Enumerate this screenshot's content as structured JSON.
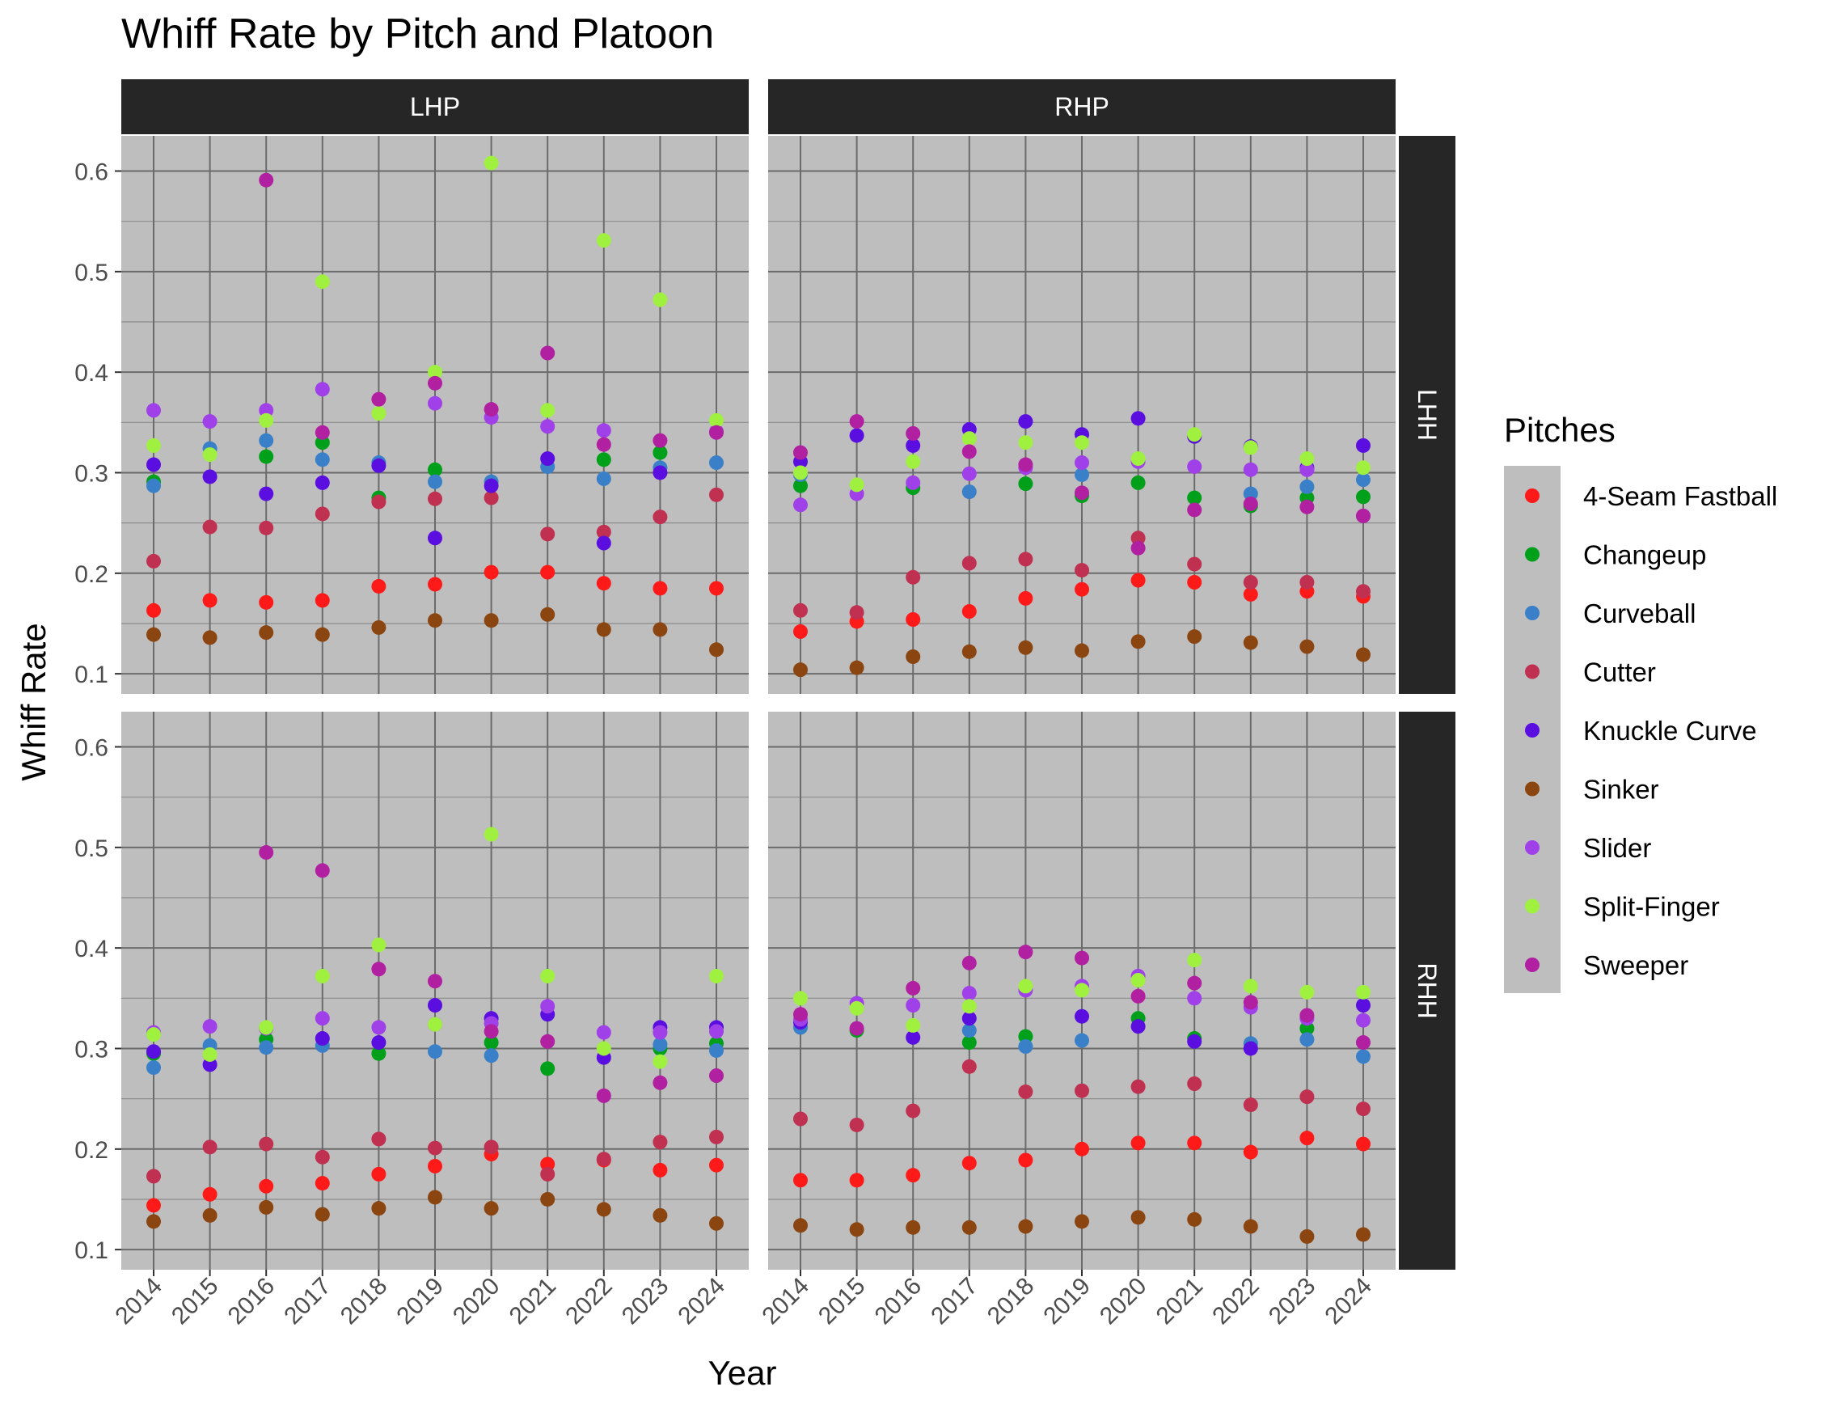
{
  "title": "Whiff Rate by Pitch and Platoon",
  "xlabel": "Year",
  "ylabel": "Whiff Rate",
  "legend_title": "Pitches",
  "colors": {
    "panel_bg": "#bebebe",
    "strip_bg": "#262626",
    "grid_major": "#6b6b6b",
    "grid_minor": "#8c8c8c",
    "legend_bg": "#bebebe"
  },
  "chart_data": {
    "type": "scatter",
    "facet_columns": [
      "LHP",
      "RHP"
    ],
    "facet_rows": [
      "LHH",
      "RHH"
    ],
    "x": [
      "2014",
      "2015",
      "2016",
      "2017",
      "2018",
      "2019",
      "2020",
      "2021",
      "2022",
      "2023",
      "2024"
    ],
    "ylim": [
      0.08,
      0.635
    ],
    "yticks": [
      "0.1",
      "0.2",
      "0.3",
      "0.4",
      "0.5",
      "0.6"
    ],
    "grid": true,
    "legend_position": "right",
    "series": [
      {
        "name": "4-Seam Fastball",
        "color": "#ff1a1a"
      },
      {
        "name": "Changeup",
        "color": "#00a01a"
      },
      {
        "name": "Curveball",
        "color": "#3a80c8"
      },
      {
        "name": "Cutter",
        "color": "#c03050"
      },
      {
        "name": "Knuckle Curve",
        "color": "#5a0ee0"
      },
      {
        "name": "Sinker",
        "color": "#8b4510"
      },
      {
        "name": "Slider",
        "color": "#a040e8"
      },
      {
        "name": "Split-Finger",
        "color": "#a0f040"
      },
      {
        "name": "Sweeper",
        "color": "#b020a0"
      }
    ],
    "panels": [
      {
        "column": "LHP",
        "row": "LHH",
        "values": {
          "4-Seam Fastball": [
            0.163,
            0.173,
            0.171,
            0.173,
            0.187,
            0.189,
            0.201,
            0.201,
            0.19,
            0.185,
            0.185
          ],
          "Changeup": [
            0.291,
            null,
            0.316,
            0.33,
            0.275,
            0.303,
            null,
            null,
            0.313,
            0.32,
            null
          ],
          "Curveball": [
            0.287,
            0.324,
            0.332,
            0.313,
            0.31,
            0.291,
            0.291,
            0.306,
            0.294,
            0.305,
            0.31
          ],
          "Cutter": [
            0.212,
            0.246,
            0.245,
            0.259,
            0.271,
            0.274,
            0.275,
            0.239,
            0.241,
            0.256,
            0.278
          ],
          "Knuckle Curve": [
            0.308,
            0.296,
            0.279,
            0.29,
            0.307,
            0.235,
            0.287,
            0.314,
            0.23,
            0.3,
            null
          ],
          "Sinker": [
            0.139,
            0.136,
            0.141,
            0.139,
            0.146,
            0.153,
            0.153,
            0.159,
            0.144,
            0.144,
            0.124
          ],
          "Slider": [
            0.362,
            0.351,
            0.362,
            0.383,
            null,
            0.369,
            0.355,
            0.346,
            0.342,
            null,
            0.341
          ],
          "Split-Finger": [
            0.327,
            0.318,
            0.352,
            0.49,
            0.359,
            0.4,
            0.608,
            0.362,
            0.531,
            0.472,
            0.352
          ],
          "Sweeper": [
            null,
            null,
            0.591,
            0.34,
            0.373,
            0.389,
            0.363,
            0.419,
            0.328,
            0.332,
            0.34
          ]
        }
      },
      {
        "column": "RHP",
        "row": "LHH",
        "values": {
          "4-Seam Fastball": [
            0.142,
            0.152,
            0.154,
            0.162,
            0.175,
            0.184,
            0.193,
            0.191,
            0.179,
            0.182,
            0.177
          ],
          "Changeup": [
            0.287,
            null,
            0.285,
            null,
            0.289,
            0.277,
            0.29,
            0.275,
            0.267,
            0.275,
            0.276
          ],
          "Curveball": [
            0.298,
            null,
            null,
            0.281,
            null,
            0.298,
            null,
            null,
            0.279,
            0.286,
            0.293
          ],
          "Cutter": [
            0.163,
            0.161,
            0.196,
            0.21,
            0.214,
            0.203,
            0.235,
            0.209,
            0.191,
            0.191,
            0.182
          ],
          "Knuckle Curve": [
            0.311,
            0.337,
            0.327,
            0.343,
            0.351,
            0.338,
            0.354,
            0.336,
            0.326,
            0.305,
            0.327
          ],
          "Sinker": [
            0.104,
            0.106,
            0.117,
            0.122,
            0.126,
            0.123,
            0.132,
            0.137,
            0.131,
            0.127,
            0.119
          ],
          "Slider": [
            0.268,
            0.279,
            0.29,
            0.299,
            0.305,
            0.31,
            0.311,
            0.306,
            0.303,
            0.303,
            0.257
          ],
          "Split-Finger": [
            0.3,
            0.288,
            0.311,
            0.334,
            0.33,
            0.33,
            0.314,
            0.338,
            0.325,
            0.314,
            0.305
          ],
          "Sweeper": [
            0.32,
            0.351,
            0.339,
            0.321,
            0.308,
            0.28,
            0.225,
            0.263,
            0.269,
            0.266,
            0.257
          ]
        }
      },
      {
        "column": "LHP",
        "row": "RHH",
        "values": {
          "4-Seam Fastball": [
            0.144,
            0.155,
            0.163,
            0.166,
            0.175,
            0.183,
            0.195,
            0.185,
            0.189,
            0.179,
            0.184
          ],
          "Changeup": [
            0.295,
            null,
            0.309,
            null,
            0.295,
            null,
            0.306,
            0.28,
            null,
            0.3,
            0.305
          ],
          "Curveball": [
            0.281,
            0.303,
            0.301,
            0.303,
            null,
            0.297,
            0.293,
            null,
            null,
            0.304,
            0.298
          ],
          "Cutter": [
            0.173,
            0.202,
            0.205,
            0.192,
            0.21,
            0.201,
            0.202,
            0.175,
            0.19,
            0.207,
            0.212
          ],
          "Knuckle Curve": [
            0.297,
            0.284,
            null,
            0.31,
            0.306,
            0.343,
            0.33,
            0.334,
            0.291,
            0.321,
            0.321
          ],
          "Sinker": [
            0.128,
            0.134,
            0.142,
            0.135,
            0.141,
            0.152,
            0.141,
            0.15,
            0.14,
            0.134,
            0.126
          ],
          "Slider": [
            0.316,
            0.322,
            0.32,
            0.33,
            0.321,
            0.324,
            0.325,
            0.342,
            0.316,
            0.316,
            0.317
          ],
          "Split-Finger": [
            0.314,
            0.294,
            0.321,
            0.372,
            0.403,
            0.324,
            0.513,
            0.372,
            0.3,
            0.287,
            0.372
          ],
          "Sweeper": [
            null,
            null,
            0.495,
            0.477,
            0.379,
            0.367,
            0.317,
            0.307,
            0.253,
            0.266,
            0.273
          ]
        }
      },
      {
        "column": "RHP",
        "row": "RHH",
        "values": {
          "4-Seam Fastball": [
            0.169,
            0.169,
            0.174,
            0.186,
            0.189,
            0.2,
            0.206,
            0.206,
            0.197,
            0.211,
            0.205
          ],
          "Changeup": [
            null,
            0.318,
            null,
            0.306,
            0.312,
            null,
            0.33,
            0.31,
            null,
            0.32,
            null
          ],
          "Curveball": [
            0.321,
            null,
            null,
            0.318,
            0.302,
            0.308,
            null,
            null,
            0.305,
            0.309,
            0.292
          ],
          "Cutter": [
            0.23,
            0.224,
            0.238,
            0.282,
            0.257,
            0.258,
            0.262,
            0.265,
            0.244,
            0.252,
            0.24
          ],
          "Knuckle Curve": [
            0.326,
            null,
            0.311,
            0.33,
            null,
            0.332,
            0.322,
            0.307,
            0.3,
            null,
            0.343
          ],
          "Sinker": [
            0.124,
            0.12,
            0.122,
            0.122,
            0.123,
            0.128,
            0.132,
            0.13,
            0.123,
            0.113,
            0.115
          ],
          "Slider": [
            0.329,
            0.345,
            0.343,
            0.355,
            0.358,
            0.362,
            0.372,
            0.35,
            0.341,
            0.33,
            0.328
          ],
          "Split-Finger": [
            0.35,
            0.34,
            0.323,
            0.342,
            0.362,
            0.358,
            0.368,
            0.388,
            0.362,
            0.356,
            0.356
          ],
          "Sweeper": [
            0.334,
            0.32,
            0.36,
            0.385,
            0.396,
            0.39,
            0.352,
            0.365,
            0.346,
            0.333,
            0.306
          ]
        }
      }
    ]
  }
}
